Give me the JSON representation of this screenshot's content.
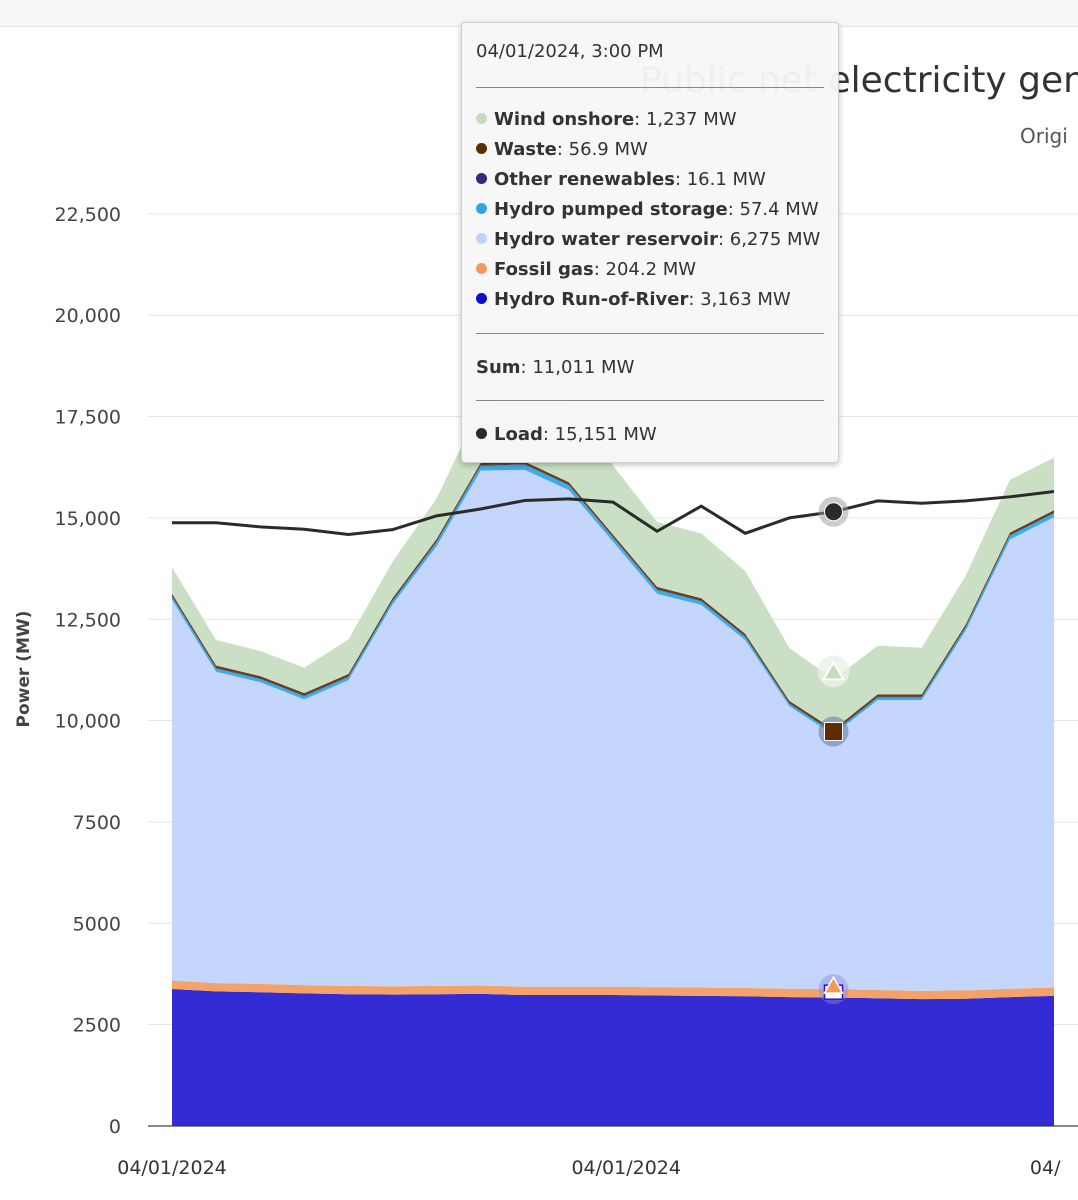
{
  "chart_data": {
    "type": "area",
    "title": "Public net electricity gene",
    "subtitle": "Origi",
    "ylabel": "Power (MW)",
    "xlabel": "",
    "ylim": [
      0,
      24000
    ],
    "y_ticks": [
      "0",
      "2500",
      "5000",
      "7500",
      "10,000",
      "12,500",
      "15,000",
      "17,500",
      "20,000",
      "22,500"
    ],
    "y_tick_values": [
      0,
      2500,
      5000,
      7500,
      10000,
      12500,
      15000,
      17500,
      20000,
      22500
    ],
    "x_ticks": [
      "04/01/2024",
      "04/01/2024",
      "04/"
    ],
    "x_tick_index": [
      0,
      10.3,
      19.8
    ],
    "x": [
      0,
      1,
      2,
      3,
      4,
      5,
      6,
      7,
      8,
      9,
      10,
      11,
      12,
      13,
      14,
      15,
      16,
      17,
      18,
      19,
      20
    ],
    "series": [
      {
        "name": "Hydro Run-of-River",
        "color": "#2219d0",
        "values": [
          3380,
          3320,
          3300,
          3270,
          3250,
          3240,
          3250,
          3260,
          3230,
          3230,
          3230,
          3220,
          3210,
          3200,
          3180,
          3170,
          3150,
          3130,
          3140,
          3180,
          3210
        ]
      },
      {
        "name": "Fossil gas",
        "color": "#f39a5a",
        "values": [
          210,
          205,
          205,
          205,
          205,
          205,
          205,
          205,
          205,
          205,
          205,
          205,
          205,
          205,
          205,
          205,
          204,
          204,
          205,
          205,
          205
        ]
      },
      {
        "name": "Hydro water reservoir",
        "color": "#bfd2fc",
        "values": [
          9390,
          7680,
          7440,
          7050,
          7540,
          9420,
          10850,
          12700,
          12750,
          12250,
          10980,
          9700,
          9440,
          8580,
          6970,
          6275,
          7150,
          7170,
          8880,
          11080,
          11600
        ]
      },
      {
        "name": "Hydro pumped storage",
        "color": "#2fa6e3",
        "values": [
          80,
          80,
          80,
          80,
          80,
          80,
          100,
          120,
          130,
          120,
          100,
          100,
          90,
          80,
          60,
          57,
          70,
          70,
          80,
          100,
          100
        ]
      },
      {
        "name": "Other renewables",
        "color": "#2e2a86",
        "values": [
          16,
          16,
          16,
          16,
          16,
          16,
          16,
          16,
          16,
          16,
          16,
          16,
          16,
          16,
          16,
          16,
          16,
          16,
          16,
          16,
          16
        ]
      },
      {
        "name": "Waste",
        "color": "#5b2d00",
        "values": [
          57,
          57,
          57,
          57,
          57,
          57,
          57,
          57,
          57,
          57,
          57,
          57,
          57,
          57,
          57,
          57,
          57,
          57,
          57,
          57,
          57
        ]
      },
      {
        "name": "Wind onshore",
        "color": "#c6dcbe",
        "values": [
          650,
          630,
          620,
          630,
          850,
          900,
          1000,
          1400,
          1900,
          2200,
          1700,
          1600,
          1600,
          1550,
          1300,
          1237,
          1200,
          1150,
          1200,
          1300,
          1300
        ]
      }
    ],
    "line_series": [
      {
        "name": "Load",
        "color": "#2b2b2b",
        "values": [
          14880,
          14880,
          14780,
          14720,
          14590,
          14710,
          15050,
          15220,
          15430,
          15470,
          15390,
          14670,
          15290,
          14620,
          15000,
          15151,
          15420,
          15360,
          15420,
          15520,
          15650
        ]
      }
    ],
    "hover_index": 15
  },
  "tooltip": {
    "time": "04/01/2024, 3:00 PM",
    "rows": [
      {
        "name": "Wind onshore",
        "value": ": 1,237 MW",
        "color": "#c6dcbe"
      },
      {
        "name": "Waste",
        "value": ": 56.9 MW",
        "color": "#5b2d00"
      },
      {
        "name": "Other renewables",
        "value": ": 16.1 MW",
        "color": "#2e2a86"
      },
      {
        "name": "Hydro pumped storage",
        "value": ": 57.4 MW",
        "color": "#2fa6e3"
      },
      {
        "name": "Hydro water reservoir",
        "value": ": 6,275 MW",
        "color": "#bfd2fc"
      },
      {
        "name": "Fossil gas",
        "value": ": 204.2 MW",
        "color": "#f39a5a"
      },
      {
        "name": "Hydro Run-of-River",
        "value": ": 3,163 MW",
        "color": "#0a10c8"
      }
    ],
    "sum_label": "Sum",
    "sum_value": ": 11,011 MW",
    "load_label": "Load",
    "load_value": ": 15,151 MW",
    "load_color": "#2b2b2b"
  }
}
